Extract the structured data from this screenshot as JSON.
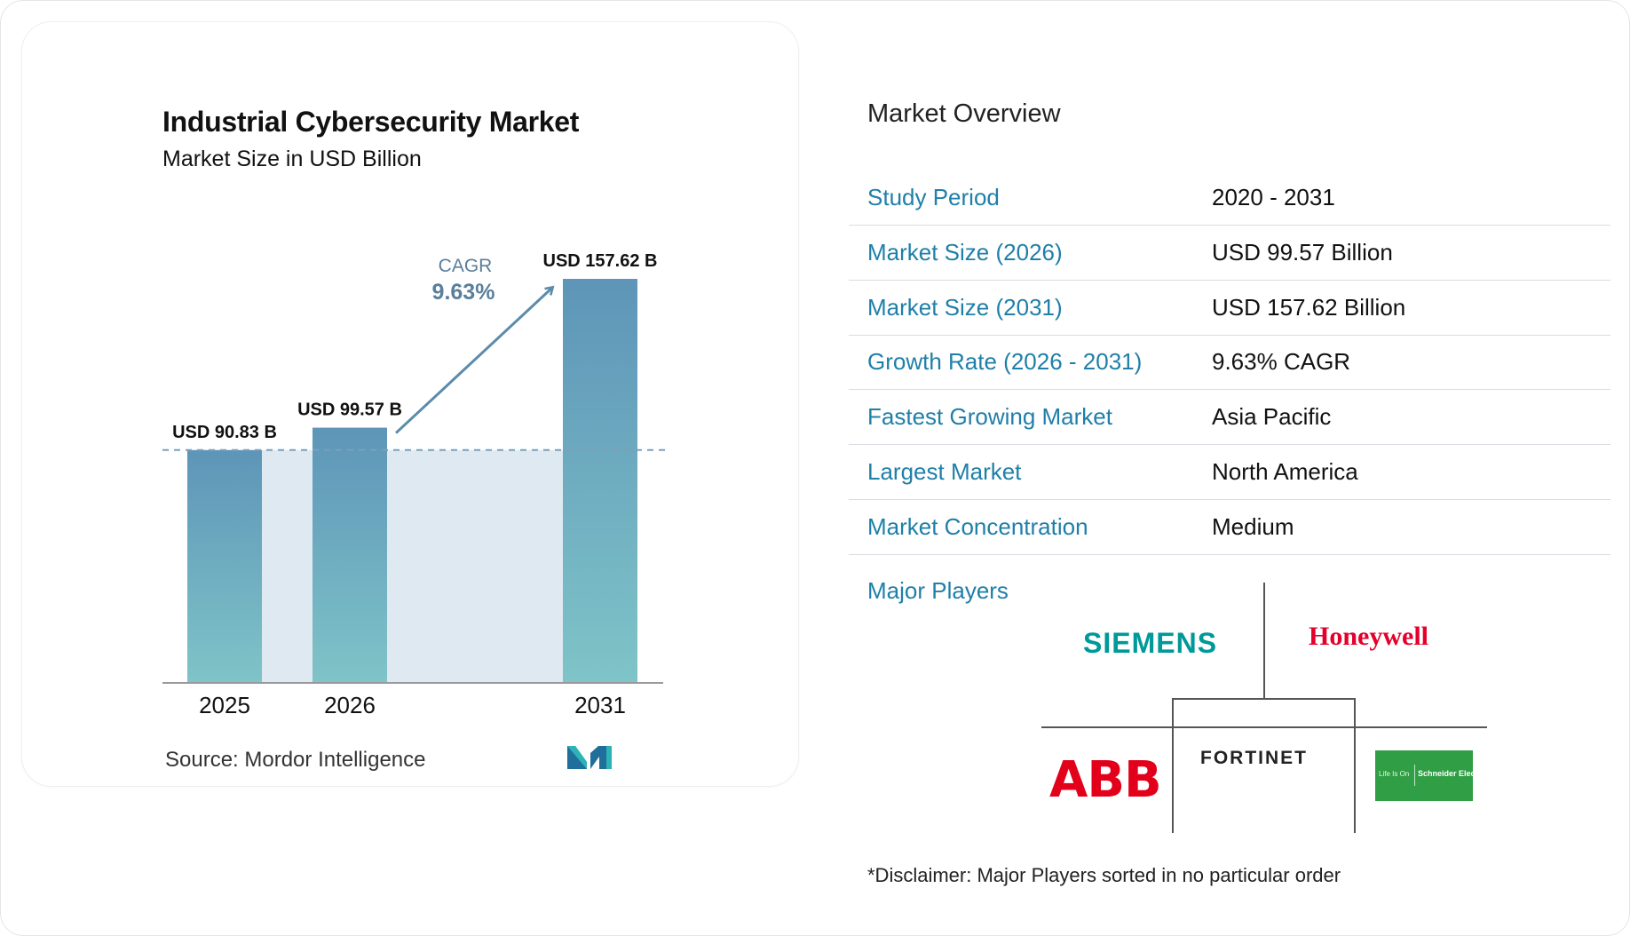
{
  "chart_data": {
    "type": "bar",
    "title": "Industrial Cybersecurity Market",
    "subtitle": "Market Size in USD Billion",
    "categories": [
      "2025",
      "2026",
      "2031"
    ],
    "values": [
      90.83,
      99.57,
      157.62
    ],
    "value_labels": [
      "USD 90.83 B",
      "USD 99.57 B",
      "USD 157.62 B"
    ],
    "cagr_label": "CAGR",
    "cagr_value": "9.63%",
    "source": "Source:  Mordor Intelligence",
    "colors": {
      "bar_top": "#5e95b8",
      "bar_bottom": "#7fc4c8",
      "band": "#dfe9f1",
      "arrow": "#5c8bab",
      "dash": "#7aa0bb"
    }
  },
  "overview": {
    "title": "Market Overview",
    "rows": [
      {
        "label": "Study Period",
        "value": "2020 - 2031"
      },
      {
        "label": "Market Size (2026)",
        "value": "USD 99.57 Billion"
      },
      {
        "label": "Market Size (2031)",
        "value": "USD 157.62 Billion"
      },
      {
        "label": "Growth Rate (2026 - 2031)",
        "value": "9.63% CAGR"
      },
      {
        "label": "Fastest Growing Market",
        "value": "Asia Pacific"
      },
      {
        "label": "Largest Market",
        "value": "North America"
      },
      {
        "label": "Market Concentration",
        "value": "Medium"
      }
    ],
    "major_players_title": "Major Players",
    "players": [
      "SIEMENS",
      "Honeywell",
      "ABB",
      "FORTINET",
      "Schneider Electric"
    ],
    "schneider_tagline": "Life Is On",
    "disclaimer": "*Disclaimer: Major Players sorted in no particular order"
  }
}
